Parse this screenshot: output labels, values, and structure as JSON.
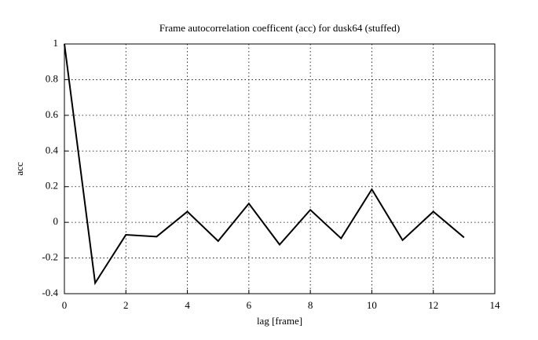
{
  "chart_data": {
    "type": "line",
    "title": "Frame autocorrelation coefficent (acc) for dusk64 (stuffed)",
    "x_label": "lag [frame]",
    "y_label": "acc",
    "x": [
      0,
      1,
      2,
      3,
      4,
      5,
      6,
      7,
      8,
      9,
      10,
      11,
      12,
      13
    ],
    "series": [
      {
        "name": "acc",
        "color": "#000000",
        "values": [
          1,
          -0.34,
          -0.07,
          -0.08,
          0.06,
          -0.105,
          0.105,
          -0.125,
          0.07,
          -0.09,
          0.185,
          -0.1,
          0.06,
          -0.085
        ]
      }
    ],
    "xlim": [
      0,
      14
    ],
    "xticks": [
      0,
      2,
      4,
      6,
      8,
      10,
      12,
      14
    ],
    "ylim": [
      -0.4,
      1
    ],
    "yticks": [
      -0.4,
      -0.2,
      0,
      0.2,
      0.4,
      0.6,
      0.8,
      1
    ],
    "grid": true
  }
}
